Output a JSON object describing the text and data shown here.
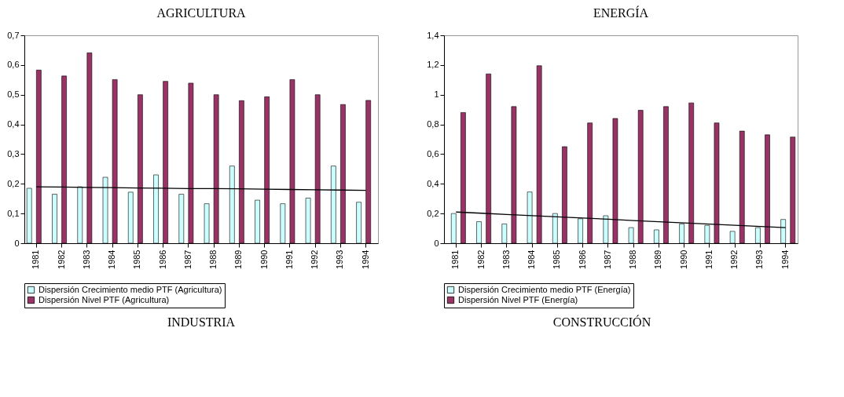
{
  "chart_data": [
    {
      "type": "bar",
      "title": "AGRICULTURA",
      "categories": [
        "1981",
        "1982",
        "1983",
        "1984",
        "1985",
        "1986",
        "1987",
        "1988",
        "1989",
        "1990",
        "1991",
        "1992",
        "1993",
        "1994"
      ],
      "series": [
        {
          "name": "Dispersión Crecimiento medio PTF (Agricultura)",
          "color": "#ccffff",
          "values": [
            0.185,
            0.165,
            0.19,
            0.222,
            0.172,
            0.23,
            0.165,
            0.133,
            0.26,
            0.145,
            0.133,
            0.152,
            0.26,
            0.138
          ]
        },
        {
          "name": "Dispersión Nivel PTF (Agricultura)",
          "color": "#993366",
          "values": [
            0.583,
            0.563,
            0.641,
            0.551,
            0.5,
            0.545,
            0.539,
            0.5,
            0.48,
            0.493,
            0.551,
            0.5,
            0.467,
            0.481
          ]
        },
        {
          "type": "line",
          "color": "#000000",
          "values": [
            0.19,
            0.189,
            0.188,
            0.187,
            0.186,
            0.185,
            0.184,
            0.184,
            0.183,
            0.182,
            0.181,
            0.18,
            0.179,
            0.178
          ]
        }
      ],
      "ylim": [
        0,
        0.7
      ],
      "yticks": [
        0,
        {
          "value": 0.1,
          "label": "0,1"
        },
        {
          "value": 0.2,
          "label": "0,2"
        },
        {
          "value": 0.3,
          "label": "0,3"
        },
        {
          "value": 0.4,
          "label": "0,4"
        },
        {
          "value": 0.5,
          "label": "0,5"
        },
        {
          "value": 0.6,
          "label": "0,6"
        },
        {
          "value": 0.7,
          "label": "0,7"
        }
      ],
      "grid": false,
      "legend": "bottom"
    },
    {
      "type": "bar",
      "title": "ENERGÍA",
      "categories": [
        "1981",
        "1982",
        "1983",
        "1984",
        "1985",
        "1986",
        "1987",
        "1988",
        "1989",
        "1990",
        "1991",
        "1992",
        "1993",
        "1994"
      ],
      "series": [
        {
          "name": "Dispersión Crecimiento medio PTF (Energía)",
          "color": "#ccffff",
          "values": [
            0.2,
            0.145,
            0.13,
            0.345,
            0.2,
            0.165,
            0.185,
            0.105,
            0.09,
            0.13,
            0.12,
            0.08,
            0.105,
            0.16
          ]
        },
        {
          "name": "Dispersión Nivel PTF (Energía)",
          "color": "#993366",
          "values": [
            0.88,
            1.14,
            0.92,
            1.195,
            0.65,
            0.81,
            0.84,
            0.895,
            0.92,
            0.945,
            0.81,
            0.755,
            0.73,
            0.715
          ]
        },
        {
          "type": "line",
          "color": "#000000",
          "values": [
            0.21,
            0.202,
            0.194,
            0.186,
            0.178,
            0.17,
            0.162,
            0.153,
            0.145,
            0.137,
            0.129,
            0.121,
            0.113,
            0.105
          ]
        }
      ],
      "ylim": [
        0,
        1.4
      ],
      "yticks": [
        0,
        {
          "value": 0.2,
          "label": "0,2"
        },
        {
          "value": 0.4,
          "label": "0,4"
        },
        {
          "value": 0.6,
          "label": "0,6"
        },
        {
          "value": 0.8,
          "label": "0,8"
        },
        1,
        {
          "value": 1.2,
          "label": "1,2"
        },
        {
          "value": 1.4,
          "label": "1,4"
        }
      ],
      "grid": false,
      "legend": "bottom"
    },
    {
      "type": "other",
      "title": "INDUSTRIA"
    },
    {
      "type": "other",
      "title": "CONSTRUCCIÓN"
    }
  ]
}
